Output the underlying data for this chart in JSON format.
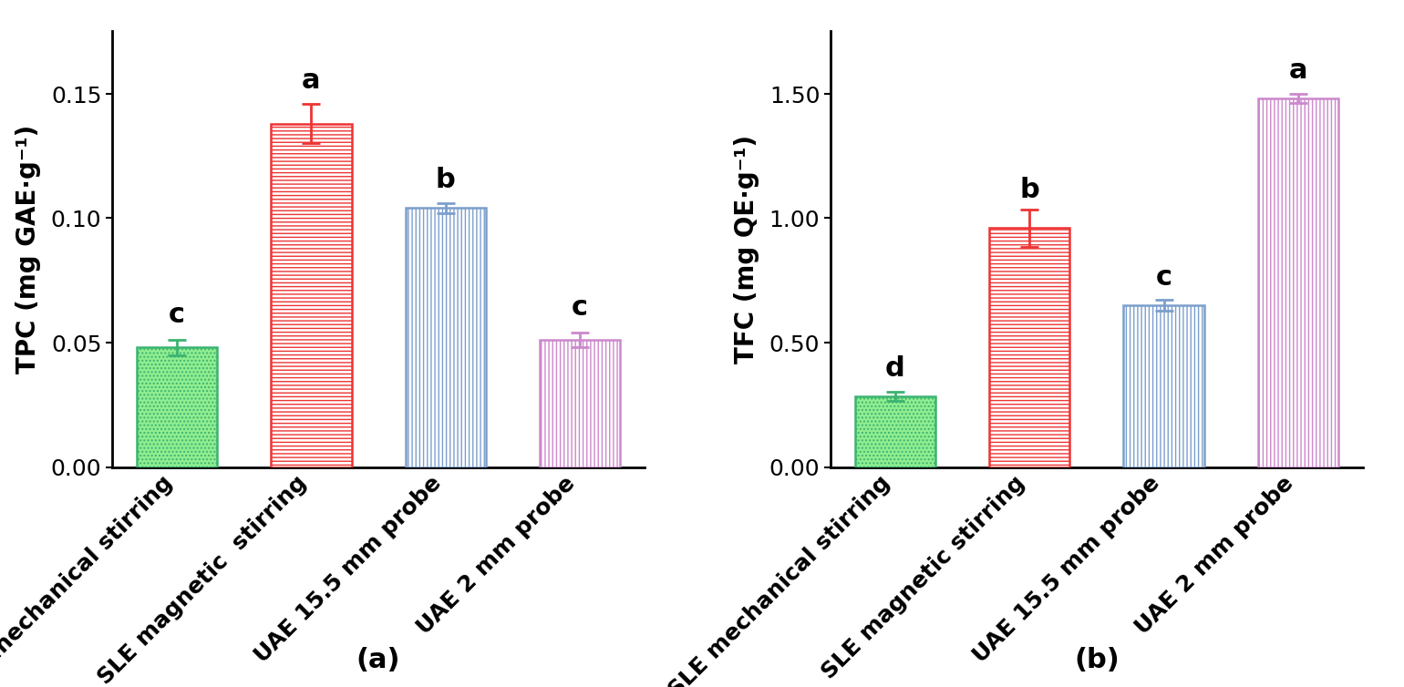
{
  "subplot_a": {
    "ylabel": "TPC (mg GAE·g⁻¹)",
    "categories": [
      "SLE mechanical stirring",
      "SLE magnetic  stirring",
      "UAE 15.5 mm probe",
      "UAE 2 mm probe"
    ],
    "values": [
      0.048,
      0.138,
      0.104,
      0.051
    ],
    "errors": [
      0.003,
      0.008,
      0.002,
      0.003
    ],
    "letters": [
      "c",
      "a",
      "b",
      "c"
    ],
    "letter_offsets": [
      0.008,
      0.012,
      0.006,
      0.008
    ],
    "ylim": [
      0.0,
      0.175
    ],
    "yticks": [
      0.0,
      0.05,
      0.1,
      0.15
    ],
    "bar_colors": [
      "#90EE90",
      "#FFFFFF",
      "#FFFFFF",
      "#FFFFFF"
    ],
    "bar_edge_colors": [
      "#3CB371",
      "#EE3333",
      "#7B9FCC",
      "#CC88CC"
    ],
    "hatch_patterns": [
      "....",
      "----",
      "||||",
      "||||"
    ],
    "label": "(a)"
  },
  "subplot_b": {
    "ylabel": "TFC (mg QE·g⁻¹)",
    "categories": [
      "SLE mechanical stirring",
      "SLE magnetic stirring",
      "UAE 15.5 mm probe",
      "UAE 2 mm probe"
    ],
    "values": [
      0.285,
      0.96,
      0.65,
      1.48
    ],
    "errors": [
      0.018,
      0.075,
      0.022,
      0.018
    ],
    "letters": [
      "d",
      "b",
      "c",
      "a"
    ],
    "letter_offsets": [
      0.06,
      0.1,
      0.06,
      0.06
    ],
    "ylim": [
      0.0,
      1.75
    ],
    "yticks": [
      0.0,
      0.5,
      1.0,
      1.5
    ],
    "bar_colors": [
      "#90EE90",
      "#FFFFFF",
      "#FFFFFF",
      "#FFFFFF"
    ],
    "bar_edge_colors": [
      "#3CB371",
      "#EE3333",
      "#7B9FCC",
      "#CC88CC"
    ],
    "hatch_patterns": [
      "....",
      "----",
      "||||",
      "||||"
    ],
    "label": "(b)"
  },
  "figure_bg": "#FFFFFF",
  "bar_width": 0.6,
  "fontsize_ticks": 18,
  "fontsize_ylabel": 20,
  "fontsize_letters": 22,
  "fontsize_label": 22
}
